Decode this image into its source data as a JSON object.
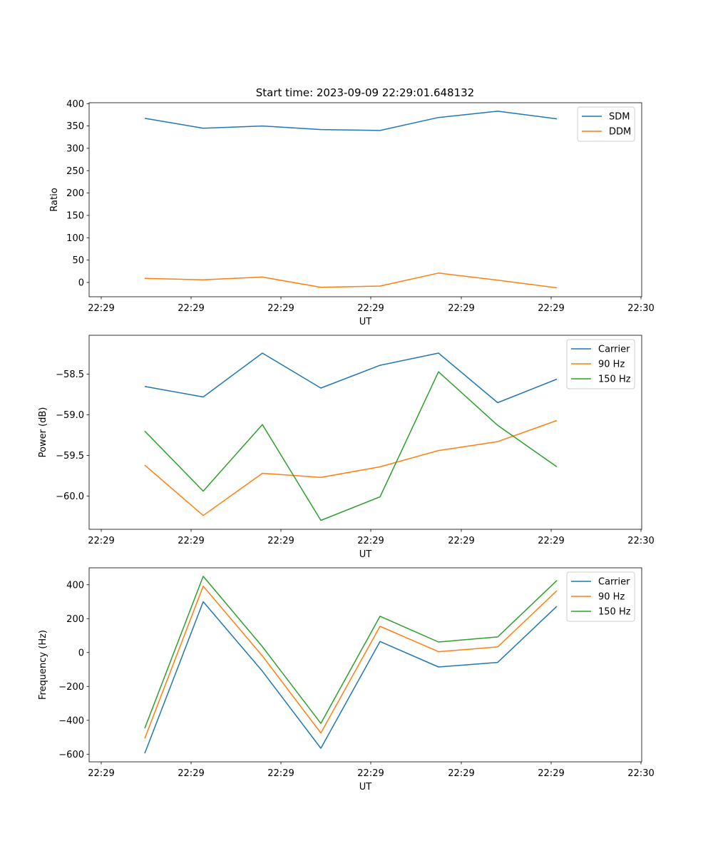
{
  "figure": {
    "suptitle": "Start time: 2023-09-09 22:29:01.648132"
  },
  "colors": {
    "blue": "#1f77b4",
    "orange": "#ff7f0e",
    "green": "#2ca02c"
  },
  "chart_data": [
    {
      "type": "line",
      "name": "ratio",
      "title": "",
      "xlabel": "UT",
      "ylabel": "Ratio",
      "x_tick_labels": [
        "22:29",
        "22:29",
        "22:29",
        "22:29",
        "22:29",
        "22:29",
        "22:30"
      ],
      "y_ticks": [
        0,
        50,
        100,
        150,
        200,
        250,
        300,
        350,
        400
      ],
      "y_tick_labels": [
        "0",
        "50",
        "100",
        "150",
        "200",
        "250",
        "300",
        "350",
        "400"
      ],
      "ylim": [
        -32,
        402
      ],
      "legend": "top-right",
      "series": [
        {
          "name": "SDM",
          "color": "blue",
          "values": [
            367,
            345,
            350,
            342,
            340,
            369,
            383,
            366
          ]
        },
        {
          "name": "DDM",
          "color": "orange",
          "values": [
            9,
            6,
            12,
            -11,
            -8,
            21,
            5,
            -12
          ]
        }
      ]
    },
    {
      "type": "line",
      "name": "power",
      "title": "",
      "xlabel": "UT",
      "ylabel": "Power (dB)",
      "x_tick_labels": [
        "22:29",
        "22:29",
        "22:29",
        "22:29",
        "22:29",
        "22:29",
        "22:30"
      ],
      "y_ticks": [
        -60.0,
        -59.5,
        -59.0,
        -58.5
      ],
      "y_tick_labels": [
        "−60.0",
        "−59.5",
        "−59.0",
        "−58.5"
      ],
      "ylim": [
        -60.41,
        -58.02
      ],
      "legend": "top-right",
      "series": [
        {
          "name": "Carrier",
          "color": "blue",
          "values": [
            -58.65,
            -58.78,
            -58.24,
            -58.67,
            -58.39,
            -58.24,
            -58.85,
            -58.56
          ]
        },
        {
          "name": "90 Hz",
          "color": "orange",
          "values": [
            -59.62,
            -60.24,
            -59.72,
            -59.77,
            -59.64,
            -59.44,
            -59.33,
            -59.07
          ]
        },
        {
          "name": "150 Hz",
          "color": "green",
          "values": [
            -59.2,
            -59.94,
            -59.12,
            -60.3,
            -60.01,
            -58.47,
            -59.13,
            -59.64
          ]
        }
      ]
    },
    {
      "type": "line",
      "name": "frequency",
      "title": "",
      "xlabel": "UT",
      "ylabel": "Frequency (Hz)",
      "x_tick_labels": [
        "22:29",
        "22:29",
        "22:29",
        "22:29",
        "22:29",
        "22:29",
        "22:30"
      ],
      "y_ticks": [
        -600,
        -400,
        -200,
        0,
        200,
        400
      ],
      "y_tick_labels": [
        "−600",
        "−400",
        "−200",
        "0",
        "200",
        "400"
      ],
      "ylim": [
        -645,
        500
      ],
      "legend": "top-right",
      "series": [
        {
          "name": "Carrier",
          "color": "blue",
          "values": [
            -595,
            300,
            -110,
            -565,
            65,
            -85,
            -58,
            273
          ]
        },
        {
          "name": "90 Hz",
          "color": "orange",
          "values": [
            -507,
            392,
            -20,
            -475,
            155,
            5,
            33,
            365
          ]
        },
        {
          "name": "150 Hz",
          "color": "green",
          "values": [
            -447,
            450,
            35,
            -418,
            214,
            62,
            92,
            425
          ]
        }
      ]
    }
  ]
}
